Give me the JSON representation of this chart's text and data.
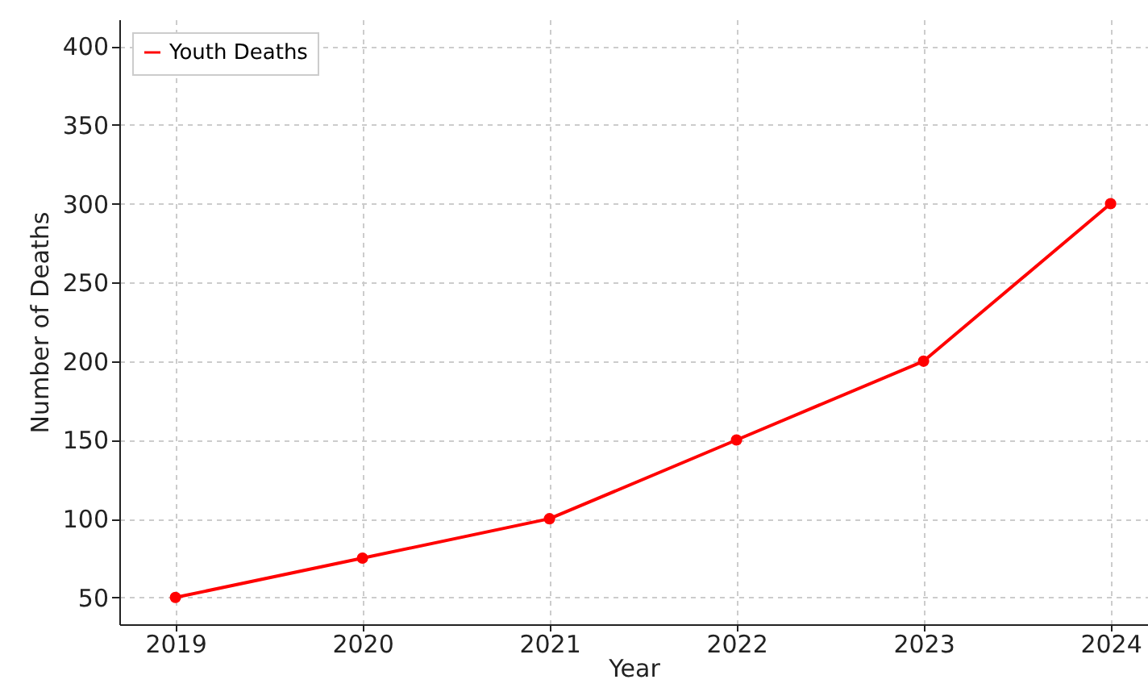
{
  "chart_data": {
    "type": "line",
    "xlabel": "Year",
    "ylabel": "Number of Deaths",
    "x": [
      2019,
      2020,
      2021,
      2022,
      2023,
      2024
    ],
    "series": [
      {
        "name": "Youth Deaths",
        "color": "#ff0000",
        "values": [
          50,
          75,
          100,
          150,
          200,
          300
        ]
      }
    ],
    "xlim": [
      2018.7,
      2024.2
    ],
    "xticks": [
      2019,
      2020,
      2021,
      2022,
      2023,
      2024
    ],
    "ylim": [
      33,
      417
    ],
    "yticks": [
      50,
      100,
      150,
      200,
      250,
      300,
      350,
      400
    ],
    "grid": true,
    "legend": "top left",
    "marker": "circle",
    "line_style": "solid"
  }
}
